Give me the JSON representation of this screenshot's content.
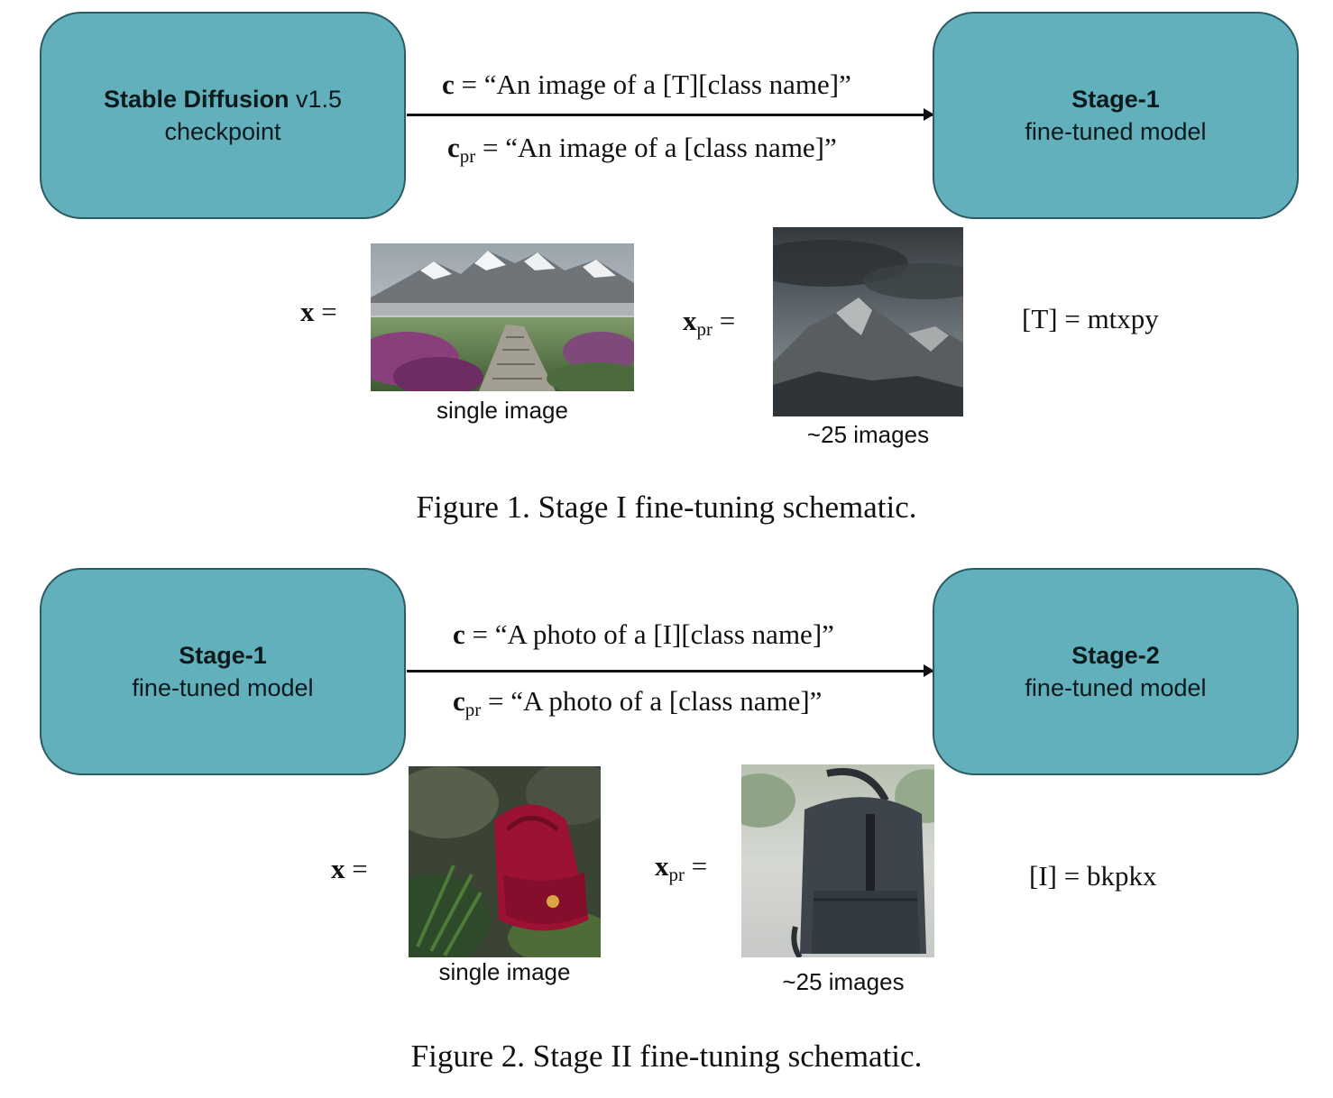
{
  "figure1": {
    "left_box": {
      "title_bold": "Stable Diffusion",
      "title_rest": " v1.5",
      "subtitle": "checkpoint"
    },
    "right_box": {
      "title": "Stage-1",
      "subtitle": "fine-tuned model"
    },
    "c_label": "c",
    "c_text": "“An image of a [T][class name]”",
    "cpr_label": "c",
    "cpr_sub": "pr",
    "cpr_text": "“An image of a [class name]”",
    "x_label": "x",
    "x_caption": "single image",
    "xpr_label": "x",
    "xpr_sub": "pr",
    "xpr_caption": "~25 images",
    "token_def": "[T] = mtxpy",
    "caption": "Figure 1. Stage I fine-tuning schematic."
  },
  "figure2": {
    "left_box": {
      "title": "Stage-1",
      "subtitle": "fine-tuned model"
    },
    "right_box": {
      "title": "Stage-2",
      "subtitle": "fine-tuned model"
    },
    "c_label": "c",
    "c_text": "“A photo of a [I][class name]”",
    "cpr_label": "c",
    "cpr_sub": "pr",
    "cpr_text": "“A photo of a [class name]”",
    "x_label": "x",
    "x_caption": "single image",
    "xpr_label": "x",
    "xpr_sub": "pr",
    "xpr_caption": "~25 images",
    "token_def": "[I] = bkpkx",
    "caption": "Figure 2. Stage II fine-tuning schematic."
  },
  "images": {
    "fig1_x": "mountain-path-with-purple-flowers",
    "fig1_xpr": "cloudy-mountain-peaks",
    "fig2_x": "red-backpack-on-forest-floor",
    "fig2_xpr": "dark-leather-backpack"
  }
}
